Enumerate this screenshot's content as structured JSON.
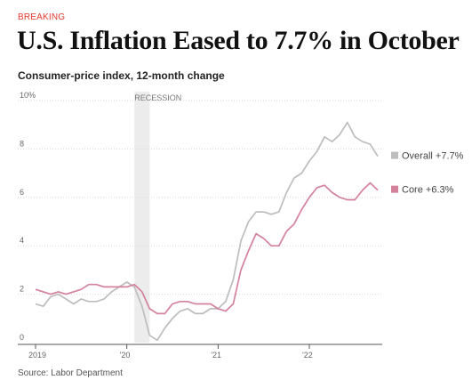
{
  "header": {
    "eyebrow": "BREAKING",
    "title": "U.S. Inflation Eased to 7.7% in October",
    "subtitle": "Consumer-price index, 12-month change"
  },
  "footer": {
    "source": "Source: Labor Department"
  },
  "colors": {
    "overall": "#bdbdbd",
    "core": "#d4819c",
    "recession": "#ececec",
    "grid": "#d9d9d9"
  },
  "chart_data": {
    "type": "line",
    "title": "U.S. Inflation Eased to 7.7% in October",
    "subtitle": "Consumer-price index, 12-month change",
    "ylabel": "",
    "xlabel": "",
    "ylim": [
      0,
      10
    ],
    "yticks": [
      {
        "value": 0,
        "label": "0"
      },
      {
        "value": 2,
        "label": "2"
      },
      {
        "value": 4,
        "label": "4"
      },
      {
        "value": 6,
        "label": "6"
      },
      {
        "value": 8,
        "label": "8"
      },
      {
        "value": 10,
        "label": "10%"
      }
    ],
    "xticks": [
      {
        "value": "2019-01",
        "label": "2019"
      },
      {
        "value": "2020-01",
        "label": "'20"
      },
      {
        "value": "2021-01",
        "label": "'21"
      },
      {
        "value": "2022-01",
        "label": "'22"
      }
    ],
    "x_range": [
      "2019-01",
      "2022-10"
    ],
    "grid": true,
    "legend": "right, at line ends",
    "annotations": [
      {
        "type": "shaded-range",
        "label": "RECESSION",
        "start": "2020-02",
        "end": "2020-04"
      }
    ],
    "x": [
      "2019-01",
      "2019-02",
      "2019-03",
      "2019-04",
      "2019-05",
      "2019-06",
      "2019-07",
      "2019-08",
      "2019-09",
      "2019-10",
      "2019-11",
      "2019-12",
      "2020-01",
      "2020-02",
      "2020-03",
      "2020-04",
      "2020-05",
      "2020-06",
      "2020-07",
      "2020-08",
      "2020-09",
      "2020-10",
      "2020-11",
      "2020-12",
      "2021-01",
      "2021-02",
      "2021-03",
      "2021-04",
      "2021-05",
      "2021-06",
      "2021-07",
      "2021-08",
      "2021-09",
      "2021-10",
      "2021-11",
      "2021-12",
      "2022-01",
      "2022-02",
      "2022-03",
      "2022-04",
      "2022-05",
      "2022-06",
      "2022-07",
      "2022-08",
      "2022-09",
      "2022-10"
    ],
    "series": [
      {
        "name": "Overall",
        "legend_label": "Overall +7.7%",
        "values": [
          1.6,
          1.5,
          1.9,
          2.0,
          1.8,
          1.6,
          1.8,
          1.7,
          1.7,
          1.8,
          2.1,
          2.3,
          2.5,
          2.3,
          1.5,
          0.3,
          0.1,
          0.6,
          1.0,
          1.3,
          1.4,
          1.2,
          1.2,
          1.4,
          1.4,
          1.7,
          2.6,
          4.2,
          5.0,
          5.4,
          5.4,
          5.3,
          5.4,
          6.2,
          6.8,
          7.0,
          7.5,
          7.9,
          8.5,
          8.3,
          8.6,
          9.1,
          8.5,
          8.3,
          8.2,
          7.7
        ]
      },
      {
        "name": "Core",
        "legend_label": "Core +6.3%",
        "values": [
          2.2,
          2.1,
          2.0,
          2.1,
          2.0,
          2.1,
          2.2,
          2.4,
          2.4,
          2.3,
          2.3,
          2.3,
          2.3,
          2.4,
          2.1,
          1.4,
          1.2,
          1.2,
          1.6,
          1.7,
          1.7,
          1.6,
          1.6,
          1.6,
          1.4,
          1.3,
          1.6,
          3.0,
          3.8,
          4.5,
          4.3,
          4.0,
          4.0,
          4.6,
          4.9,
          5.5,
          6.0,
          6.4,
          6.5,
          6.2,
          6.0,
          5.9,
          5.9,
          6.3,
          6.6,
          6.3
        ]
      }
    ]
  }
}
